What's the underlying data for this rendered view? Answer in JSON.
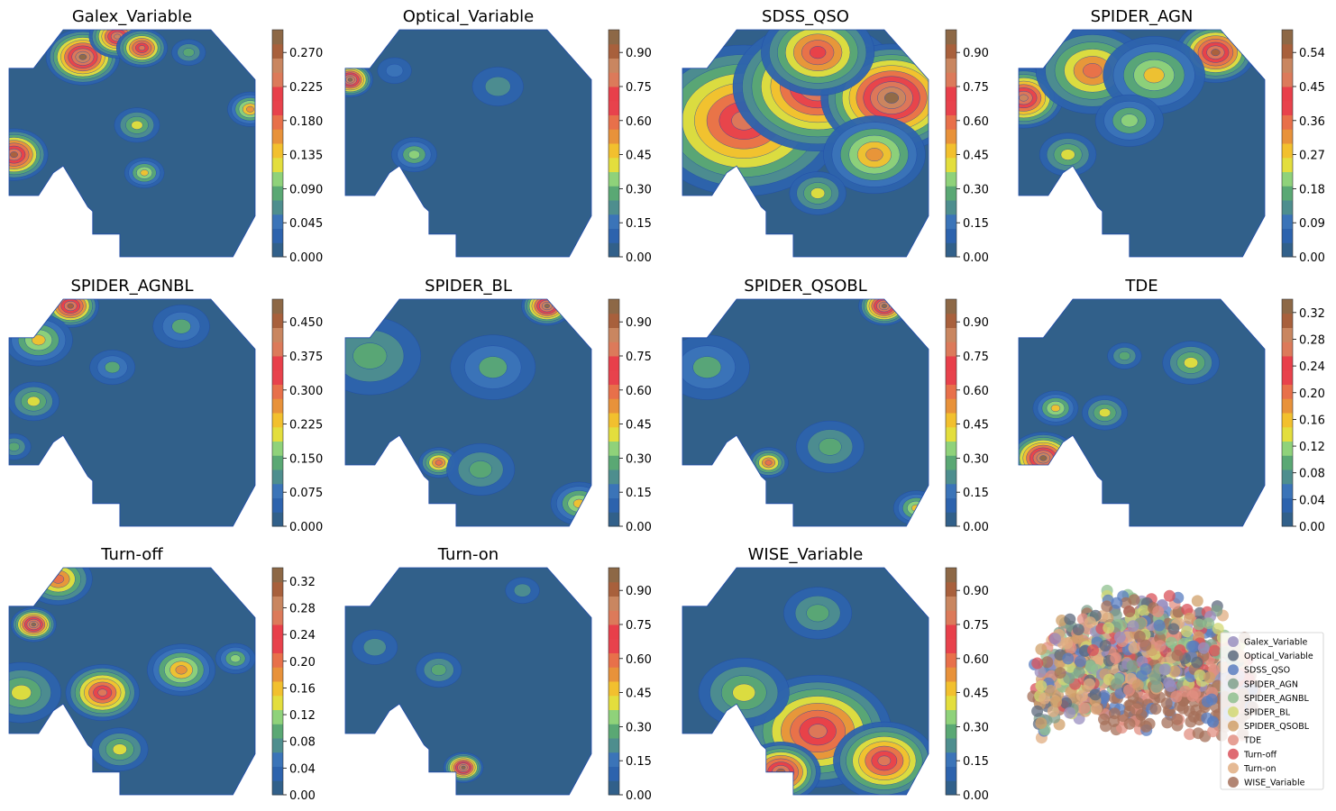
{
  "figure": {
    "colors": {
      "background": "#ffffff",
      "text": "#000000",
      "colormap": [
        "#31608a",
        "#2d63ad",
        "#3b74b8",
        "#4e8e8e",
        "#5aa874",
        "#8fd27a",
        "#e3de3d",
        "#f2c02e",
        "#e8923a",
        "#e8704a",
        "#e8424c",
        "#e83f4a",
        "#dc7a5a",
        "#c98660",
        "#a8603c",
        "#8d6846"
      ],
      "shape_edge": "#1f4aa8"
    }
  },
  "chart_data": [
    {
      "type": "contour",
      "title": "Galex_Variable",
      "colorbar": {
        "ticks": [
          "0.000",
          "0.045",
          "0.090",
          "0.135",
          "0.180",
          "0.225",
          "0.270"
        ],
        "vmax": 0.3
      },
      "hotspots": [
        {
          "u": 0.3,
          "v": 0.12,
          "level": 0.95,
          "r": 0.13
        },
        {
          "u": 0.44,
          "v": 0.03,
          "level": 0.85,
          "r": 0.1
        },
        {
          "u": 0.54,
          "v": 0.08,
          "level": 0.8,
          "r": 0.09
        },
        {
          "u": 0.02,
          "v": 0.55,
          "level": 0.9,
          "r": 0.12
        },
        {
          "u": 0.52,
          "v": 0.42,
          "level": 0.4,
          "r": 0.08
        },
        {
          "u": 0.55,
          "v": 0.63,
          "level": 0.45,
          "r": 0.07
        },
        {
          "u": 0.98,
          "v": 0.35,
          "level": 0.55,
          "r": 0.08
        },
        {
          "u": 0.73,
          "v": 0.1,
          "level": 0.3,
          "r": 0.06
        }
      ]
    },
    {
      "type": "contour",
      "title": "Optical_Variable",
      "colorbar": {
        "ticks": [
          "0.00",
          "0.15",
          "0.30",
          "0.45",
          "0.60",
          "0.75",
          "0.90"
        ],
        "vmax": 1.0
      },
      "hotspots": [
        {
          "u": 0.02,
          "v": 0.22,
          "level": 0.95,
          "r": 0.08
        },
        {
          "u": 0.28,
          "v": 0.55,
          "level": 0.35,
          "r": 0.08
        },
        {
          "u": 0.62,
          "v": 0.25,
          "level": 0.2,
          "r": 0.09
        },
        {
          "u": 0.2,
          "v": 0.18,
          "level": 0.15,
          "r": 0.06
        }
      ]
    },
    {
      "type": "contour",
      "title": "SDSS_QSO",
      "colorbar": {
        "ticks": [
          "0.00",
          "0.15",
          "0.30",
          "0.45",
          "0.60",
          "0.75",
          "0.90"
        ],
        "vmax": 1.0
      },
      "hotspots": [
        {
          "u": 0.25,
          "v": 0.4,
          "level": 0.75,
          "r": 0.35
        },
        {
          "u": 0.55,
          "v": 0.25,
          "level": 0.85,
          "r": 0.3
        },
        {
          "u": 0.85,
          "v": 0.3,
          "level": 0.95,
          "r": 0.25
        },
        {
          "u": 0.55,
          "v": 0.1,
          "level": 0.7,
          "r": 0.2
        },
        {
          "u": 0.78,
          "v": 0.55,
          "level": 0.55,
          "r": 0.18
        },
        {
          "u": 0.55,
          "v": 0.72,
          "level": 0.4,
          "r": 0.1
        }
      ]
    },
    {
      "type": "contour",
      "title": "SPIDER_AGN",
      "colorbar": {
        "ticks": [
          "0.00",
          "0.09",
          "0.18",
          "0.27",
          "0.36",
          "0.45",
          "0.54"
        ],
        "vmax": 0.6
      },
      "hotspots": [
        {
          "u": 0.02,
          "v": 0.3,
          "level": 0.85,
          "r": 0.14
        },
        {
          "u": 0.3,
          "v": 0.18,
          "level": 0.6,
          "r": 0.2
        },
        {
          "u": 0.8,
          "v": 0.1,
          "level": 0.9,
          "r": 0.14
        },
        {
          "u": 0.55,
          "v": 0.2,
          "level": 0.45,
          "r": 0.18
        },
        {
          "u": 0.2,
          "v": 0.55,
          "level": 0.4,
          "r": 0.1
        },
        {
          "u": 0.45,
          "v": 0.4,
          "level": 0.35,
          "r": 0.12
        }
      ]
    },
    {
      "type": "contour",
      "title": "SPIDER_AGNBL",
      "colorbar": {
        "ticks": [
          "0.000",
          "0.075",
          "0.150",
          "0.225",
          "0.300",
          "0.375",
          "0.450"
        ],
        "vmax": 0.5
      },
      "hotspots": [
        {
          "u": 0.25,
          "v": 0.03,
          "level": 0.9,
          "r": 0.1
        },
        {
          "u": 0.12,
          "v": 0.18,
          "level": 0.45,
          "r": 0.12
        },
        {
          "u": 0.1,
          "v": 0.45,
          "level": 0.4,
          "r": 0.09
        },
        {
          "u": 0.02,
          "v": 0.65,
          "level": 0.3,
          "r": 0.06
        },
        {
          "u": 0.7,
          "v": 0.12,
          "level": 0.25,
          "r": 0.1
        },
        {
          "u": 0.42,
          "v": 0.3,
          "level": 0.25,
          "r": 0.08
        }
      ]
    },
    {
      "type": "contour",
      "title": "SPIDER_BL",
      "colorbar": {
        "ticks": [
          "0.00",
          "0.15",
          "0.30",
          "0.45",
          "0.60",
          "0.75",
          "0.90"
        ],
        "vmax": 1.0
      },
      "hotspots": [
        {
          "u": 0.82,
          "v": 0.03,
          "level": 0.95,
          "r": 0.09
        },
        {
          "u": 0.38,
          "v": 0.72,
          "level": 0.6,
          "r": 0.07
        },
        {
          "u": 0.1,
          "v": 0.25,
          "level": 0.3,
          "r": 0.18
        },
        {
          "u": 0.95,
          "v": 0.9,
          "level": 0.45,
          "r": 0.1
        },
        {
          "u": 0.55,
          "v": 0.75,
          "level": 0.3,
          "r": 0.12
        },
        {
          "u": 0.6,
          "v": 0.3,
          "level": 0.25,
          "r": 0.15
        }
      ]
    },
    {
      "type": "contour",
      "title": "SPIDER_QSOBL",
      "colorbar": {
        "ticks": [
          "0.00",
          "0.15",
          "0.30",
          "0.45",
          "0.60",
          "0.75",
          "0.90"
        ],
        "vmax": 1.0
      },
      "hotspots": [
        {
          "u": 0.82,
          "v": 0.03,
          "level": 0.95,
          "r": 0.09
        },
        {
          "u": 0.35,
          "v": 0.72,
          "level": 0.6,
          "r": 0.07
        },
        {
          "u": 0.1,
          "v": 0.3,
          "level": 0.25,
          "r": 0.15
        },
        {
          "u": 0.95,
          "v": 0.92,
          "level": 0.45,
          "r": 0.08
        },
        {
          "u": 0.6,
          "v": 0.65,
          "level": 0.3,
          "r": 0.12
        }
      ]
    },
    {
      "type": "contour",
      "title": "TDE",
      "colorbar": {
        "ticks": [
          "0.00",
          "0.04",
          "0.08",
          "0.12",
          "0.16",
          "0.20",
          "0.24",
          "0.28",
          "0.32"
        ],
        "vmax": 0.34
      },
      "hotspots": [
        {
          "u": 0.1,
          "v": 0.7,
          "level": 0.95,
          "r": 0.12
        },
        {
          "u": 0.15,
          "v": 0.48,
          "level": 0.45,
          "r": 0.08
        },
        {
          "u": 0.35,
          "v": 0.5,
          "level": 0.4,
          "r": 0.08
        },
        {
          "u": 0.7,
          "v": 0.28,
          "level": 0.4,
          "r": 0.1
        },
        {
          "u": 0.43,
          "v": 0.25,
          "level": 0.3,
          "r": 0.06
        }
      ]
    },
    {
      "type": "contour",
      "title": "Turn-off",
      "colorbar": {
        "ticks": [
          "0.00",
          "0.04",
          "0.08",
          "0.12",
          "0.16",
          "0.20",
          "0.24",
          "0.28",
          "0.32"
        ],
        "vmax": 0.34
      },
      "hotspots": [
        {
          "u": 0.1,
          "v": 0.25,
          "level": 0.95,
          "r": 0.08
        },
        {
          "u": 0.38,
          "v": 0.55,
          "level": 0.75,
          "r": 0.13
        },
        {
          "u": 0.7,
          "v": 0.45,
          "level": 0.55,
          "r": 0.12
        },
        {
          "u": 0.2,
          "v": 0.05,
          "level": 0.6,
          "r": 0.12
        },
        {
          "u": 0.05,
          "v": 0.55,
          "level": 0.4,
          "r": 0.14
        },
        {
          "u": 0.45,
          "v": 0.8,
          "level": 0.4,
          "r": 0.1
        },
        {
          "u": 0.92,
          "v": 0.4,
          "level": 0.35,
          "r": 0.07
        }
      ]
    },
    {
      "type": "contour",
      "title": "Turn-on",
      "colorbar": {
        "ticks": [
          "0.00",
          "0.15",
          "0.30",
          "0.45",
          "0.60",
          "0.75",
          "0.90"
        ],
        "vmax": 1.0
      },
      "hotspots": [
        {
          "u": 0.48,
          "v": 0.88,
          "level": 0.95,
          "r": 0.07
        },
        {
          "u": 0.38,
          "v": 0.45,
          "level": 0.3,
          "r": 0.08
        },
        {
          "u": 0.12,
          "v": 0.35,
          "level": 0.2,
          "r": 0.08
        },
        {
          "u": 0.72,
          "v": 0.1,
          "level": 0.2,
          "r": 0.06
        }
      ]
    },
    {
      "type": "contour",
      "title": "WISE_Variable",
      "colorbar": {
        "ticks": [
          "0.00",
          "0.15",
          "0.30",
          "0.45",
          "0.60",
          "0.75",
          "0.90"
        ],
        "vmax": 1.0
      },
      "hotspots": [
        {
          "u": 0.55,
          "v": 0.72,
          "level": 0.8,
          "r": 0.26
        },
        {
          "u": 0.82,
          "v": 0.85,
          "level": 0.75,
          "r": 0.18
        },
        {
          "u": 0.4,
          "v": 0.9,
          "level": 0.9,
          "r": 0.14
        },
        {
          "u": 0.25,
          "v": 0.55,
          "level": 0.4,
          "r": 0.16
        },
        {
          "u": 0.55,
          "v": 0.2,
          "level": 0.3,
          "r": 0.12
        }
      ]
    },
    {
      "type": "scatter",
      "legend": {
        "position": "lower-right",
        "entries": [
          {
            "label": "Galex_Variable",
            "color": "#9a8fc0"
          },
          {
            "label": "Optical_Variable",
            "color": "#5d6a7e"
          },
          {
            "label": "SDSS_QSO",
            "color": "#5a7ec0"
          },
          {
            "label": "SPIDER_AGN",
            "color": "#7fa08c"
          },
          {
            "label": "SPIDER_AGNBL",
            "color": "#8fc08f"
          },
          {
            "label": "SPIDER_BL",
            "color": "#d2d873"
          },
          {
            "label": "SPIDER_QSOBL",
            "color": "#d0a06a"
          },
          {
            "label": "TDE",
            "color": "#e28f82"
          },
          {
            "label": "Turn-off",
            "color": "#d9515a"
          },
          {
            "label": "Turn-on",
            "color": "#e0ae82"
          },
          {
            "label": "WISE_Variable",
            "color": "#a5705a"
          }
        ]
      }
    }
  ]
}
